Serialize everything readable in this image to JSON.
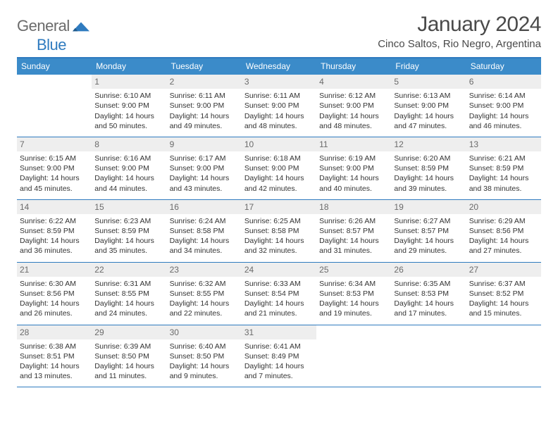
{
  "brand": {
    "part1": "General",
    "part2": "Blue",
    "logo_color": "#2f7bbf",
    "gray": "#6b6b6b"
  },
  "title": "January 2024",
  "location": "Cinco Saltos, Rio Negro, Argentina",
  "dow": [
    "Sunday",
    "Monday",
    "Tuesday",
    "Wednesday",
    "Thursday",
    "Friday",
    "Saturday"
  ],
  "colors": {
    "header_bg": "#3b8bc9",
    "accent": "#2f7bbf",
    "daynum_bg": "#eeeeee",
    "daynum_fg": "#6b6b6b",
    "text": "#333333",
    "bg": "#ffffff"
  },
  "weeks": [
    [
      {
        "day": "",
        "sunrise": "",
        "sunset": "",
        "daylight1": "",
        "daylight2": ""
      },
      {
        "day": "1",
        "sunrise": "Sunrise: 6:10 AM",
        "sunset": "Sunset: 9:00 PM",
        "daylight1": "Daylight: 14 hours",
        "daylight2": "and 50 minutes."
      },
      {
        "day": "2",
        "sunrise": "Sunrise: 6:11 AM",
        "sunset": "Sunset: 9:00 PM",
        "daylight1": "Daylight: 14 hours",
        "daylight2": "and 49 minutes."
      },
      {
        "day": "3",
        "sunrise": "Sunrise: 6:11 AM",
        "sunset": "Sunset: 9:00 PM",
        "daylight1": "Daylight: 14 hours",
        "daylight2": "and 48 minutes."
      },
      {
        "day": "4",
        "sunrise": "Sunrise: 6:12 AM",
        "sunset": "Sunset: 9:00 PM",
        "daylight1": "Daylight: 14 hours",
        "daylight2": "and 48 minutes."
      },
      {
        "day": "5",
        "sunrise": "Sunrise: 6:13 AM",
        "sunset": "Sunset: 9:00 PM",
        "daylight1": "Daylight: 14 hours",
        "daylight2": "and 47 minutes."
      },
      {
        "day": "6",
        "sunrise": "Sunrise: 6:14 AM",
        "sunset": "Sunset: 9:00 PM",
        "daylight1": "Daylight: 14 hours",
        "daylight2": "and 46 minutes."
      }
    ],
    [
      {
        "day": "7",
        "sunrise": "Sunrise: 6:15 AM",
        "sunset": "Sunset: 9:00 PM",
        "daylight1": "Daylight: 14 hours",
        "daylight2": "and 45 minutes."
      },
      {
        "day": "8",
        "sunrise": "Sunrise: 6:16 AM",
        "sunset": "Sunset: 9:00 PM",
        "daylight1": "Daylight: 14 hours",
        "daylight2": "and 44 minutes."
      },
      {
        "day": "9",
        "sunrise": "Sunrise: 6:17 AM",
        "sunset": "Sunset: 9:00 PM",
        "daylight1": "Daylight: 14 hours",
        "daylight2": "and 43 minutes."
      },
      {
        "day": "10",
        "sunrise": "Sunrise: 6:18 AM",
        "sunset": "Sunset: 9:00 PM",
        "daylight1": "Daylight: 14 hours",
        "daylight2": "and 42 minutes."
      },
      {
        "day": "11",
        "sunrise": "Sunrise: 6:19 AM",
        "sunset": "Sunset: 9:00 PM",
        "daylight1": "Daylight: 14 hours",
        "daylight2": "and 40 minutes."
      },
      {
        "day": "12",
        "sunrise": "Sunrise: 6:20 AM",
        "sunset": "Sunset: 8:59 PM",
        "daylight1": "Daylight: 14 hours",
        "daylight2": "and 39 minutes."
      },
      {
        "day": "13",
        "sunrise": "Sunrise: 6:21 AM",
        "sunset": "Sunset: 8:59 PM",
        "daylight1": "Daylight: 14 hours",
        "daylight2": "and 38 minutes."
      }
    ],
    [
      {
        "day": "14",
        "sunrise": "Sunrise: 6:22 AM",
        "sunset": "Sunset: 8:59 PM",
        "daylight1": "Daylight: 14 hours",
        "daylight2": "and 36 minutes."
      },
      {
        "day": "15",
        "sunrise": "Sunrise: 6:23 AM",
        "sunset": "Sunset: 8:59 PM",
        "daylight1": "Daylight: 14 hours",
        "daylight2": "and 35 minutes."
      },
      {
        "day": "16",
        "sunrise": "Sunrise: 6:24 AM",
        "sunset": "Sunset: 8:58 PM",
        "daylight1": "Daylight: 14 hours",
        "daylight2": "and 34 minutes."
      },
      {
        "day": "17",
        "sunrise": "Sunrise: 6:25 AM",
        "sunset": "Sunset: 8:58 PM",
        "daylight1": "Daylight: 14 hours",
        "daylight2": "and 32 minutes."
      },
      {
        "day": "18",
        "sunrise": "Sunrise: 6:26 AM",
        "sunset": "Sunset: 8:57 PM",
        "daylight1": "Daylight: 14 hours",
        "daylight2": "and 31 minutes."
      },
      {
        "day": "19",
        "sunrise": "Sunrise: 6:27 AM",
        "sunset": "Sunset: 8:57 PM",
        "daylight1": "Daylight: 14 hours",
        "daylight2": "and 29 minutes."
      },
      {
        "day": "20",
        "sunrise": "Sunrise: 6:29 AM",
        "sunset": "Sunset: 8:56 PM",
        "daylight1": "Daylight: 14 hours",
        "daylight2": "and 27 minutes."
      }
    ],
    [
      {
        "day": "21",
        "sunrise": "Sunrise: 6:30 AM",
        "sunset": "Sunset: 8:56 PM",
        "daylight1": "Daylight: 14 hours",
        "daylight2": "and 26 minutes."
      },
      {
        "day": "22",
        "sunrise": "Sunrise: 6:31 AM",
        "sunset": "Sunset: 8:55 PM",
        "daylight1": "Daylight: 14 hours",
        "daylight2": "and 24 minutes."
      },
      {
        "day": "23",
        "sunrise": "Sunrise: 6:32 AM",
        "sunset": "Sunset: 8:55 PM",
        "daylight1": "Daylight: 14 hours",
        "daylight2": "and 22 minutes."
      },
      {
        "day": "24",
        "sunrise": "Sunrise: 6:33 AM",
        "sunset": "Sunset: 8:54 PM",
        "daylight1": "Daylight: 14 hours",
        "daylight2": "and 21 minutes."
      },
      {
        "day": "25",
        "sunrise": "Sunrise: 6:34 AM",
        "sunset": "Sunset: 8:53 PM",
        "daylight1": "Daylight: 14 hours",
        "daylight2": "and 19 minutes."
      },
      {
        "day": "26",
        "sunrise": "Sunrise: 6:35 AM",
        "sunset": "Sunset: 8:53 PM",
        "daylight1": "Daylight: 14 hours",
        "daylight2": "and 17 minutes."
      },
      {
        "day": "27",
        "sunrise": "Sunrise: 6:37 AM",
        "sunset": "Sunset: 8:52 PM",
        "daylight1": "Daylight: 14 hours",
        "daylight2": "and 15 minutes."
      }
    ],
    [
      {
        "day": "28",
        "sunrise": "Sunrise: 6:38 AM",
        "sunset": "Sunset: 8:51 PM",
        "daylight1": "Daylight: 14 hours",
        "daylight2": "and 13 minutes."
      },
      {
        "day": "29",
        "sunrise": "Sunrise: 6:39 AM",
        "sunset": "Sunset: 8:50 PM",
        "daylight1": "Daylight: 14 hours",
        "daylight2": "and 11 minutes."
      },
      {
        "day": "30",
        "sunrise": "Sunrise: 6:40 AM",
        "sunset": "Sunset: 8:50 PM",
        "daylight1": "Daylight: 14 hours",
        "daylight2": "and 9 minutes."
      },
      {
        "day": "31",
        "sunrise": "Sunrise: 6:41 AM",
        "sunset": "Sunset: 8:49 PM",
        "daylight1": "Daylight: 14 hours",
        "daylight2": "and 7 minutes."
      },
      {
        "day": "",
        "sunrise": "",
        "sunset": "",
        "daylight1": "",
        "daylight2": ""
      },
      {
        "day": "",
        "sunrise": "",
        "sunset": "",
        "daylight1": "",
        "daylight2": ""
      },
      {
        "day": "",
        "sunrise": "",
        "sunset": "",
        "daylight1": "",
        "daylight2": ""
      }
    ]
  ]
}
